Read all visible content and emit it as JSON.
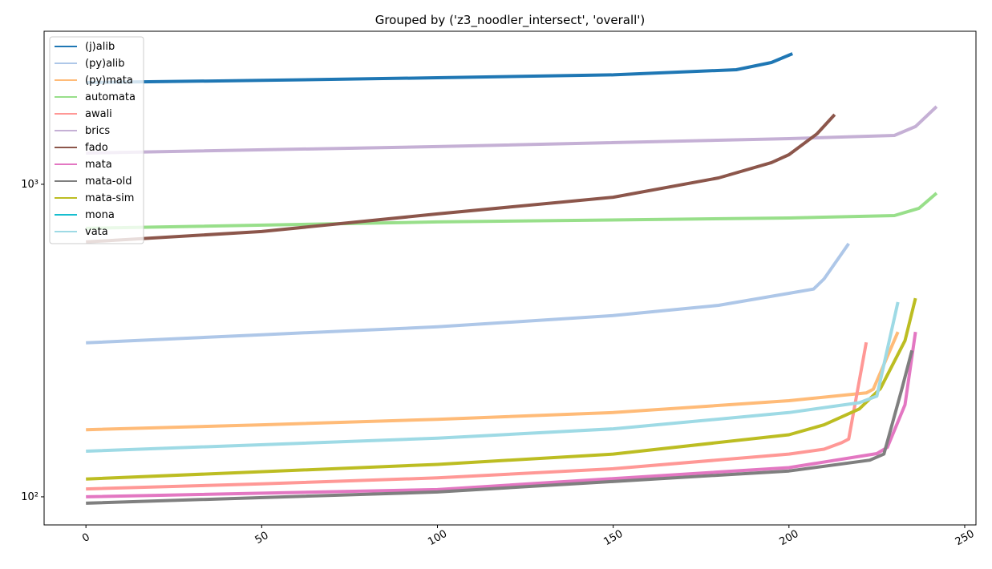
{
  "chart_data": {
    "type": "line",
    "title": "Grouped by ('z3_noodler_intersect', 'overall')",
    "xlim": [
      -11.9,
      253.2
    ],
    "xticks": [
      0,
      50,
      100,
      150,
      200,
      250
    ],
    "ylim": [
      81.3,
      3088
    ],
    "yticks": [
      {
        "value": 100,
        "label": "10²"
      },
      {
        "value": 1000,
        "label": "10³"
      }
    ],
    "log_y": true,
    "legend": "upper left",
    "series": [
      {
        "name": "(j)alib",
        "color": "#1f77b4",
        "x": [
          0,
          50,
          100,
          150,
          185,
          195,
          201
        ],
        "values": [
          2116,
          2150,
          2193,
          2240,
          2326,
          2453,
          2617
        ]
      },
      {
        "name": "(py)alib",
        "color": "#aec7e8",
        "x": [
          0,
          50,
          100,
          150,
          180,
          200,
          207,
          210,
          217
        ],
        "values": [
          311,
          330,
          350,
          380,
          410,
          448,
          462,
          498,
          646
        ]
      },
      {
        "name": "(py)mata",
        "color": "#ffbb78",
        "x": [
          0,
          50,
          100,
          150,
          200,
          222,
          224,
          231
        ],
        "values": [
          164,
          170,
          177,
          186,
          203,
          215,
          221,
          337
        ]
      },
      {
        "name": "automata",
        "color": "#98df8a",
        "x": [
          0,
          100,
          200,
          230,
          237,
          242
        ],
        "values": [
          723,
          758,
          780,
          794,
          838,
          937
        ]
      },
      {
        "name": "awali",
        "color": "#ff9896",
        "x": [
          0,
          50,
          100,
          150,
          200,
          210,
          215,
          217,
          222
        ],
        "values": [
          106,
          110,
          115,
          123,
          137,
          142,
          149,
          153,
          312
        ]
      },
      {
        "name": "brics",
        "color": "#c5b0d5",
        "x": [
          0,
          100,
          200,
          230,
          236,
          242
        ],
        "values": [
          1259,
          1320,
          1400,
          1433,
          1530,
          1773
        ]
      },
      {
        "name": "fado",
        "color": "#8c564b",
        "x": [
          0,
          50,
          100,
          150,
          180,
          195,
          200,
          208,
          213
        ],
        "values": [
          654,
          706,
          804,
          909,
          1048,
          1173,
          1244,
          1451,
          1671
        ]
      },
      {
        "name": "mata",
        "color": "#e377c2",
        "x": [
          0,
          100,
          200,
          225,
          228,
          233,
          236
        ],
        "values": [
          100,
          105.5,
          124,
          137.5,
          144,
          197,
          337
        ]
      },
      {
        "name": "mata-old",
        "color": "#7f7f7f",
        "x": [
          0,
          100,
          200,
          223,
          227,
          232,
          235
        ],
        "values": [
          95.4,
          103.6,
          121,
          131,
          137,
          219,
          294
        ]
      },
      {
        "name": "mata-sim",
        "color": "#bcbd22",
        "x": [
          0,
          100,
          150,
          200,
          210,
          220,
          226,
          233,
          236
        ],
        "values": [
          114,
          127,
          137,
          158,
          170,
          191,
          222,
          316,
          432
        ]
      },
      {
        "name": "mona",
        "color": "#17becf",
        "x": [],
        "values": []
      },
      {
        "name": "vata",
        "color": "#9edae5",
        "x": [
          0,
          100,
          150,
          200,
          220,
          225,
          231
        ],
        "values": [
          140,
          154,
          165,
          186,
          200,
          210,
          420
        ]
      }
    ]
  }
}
